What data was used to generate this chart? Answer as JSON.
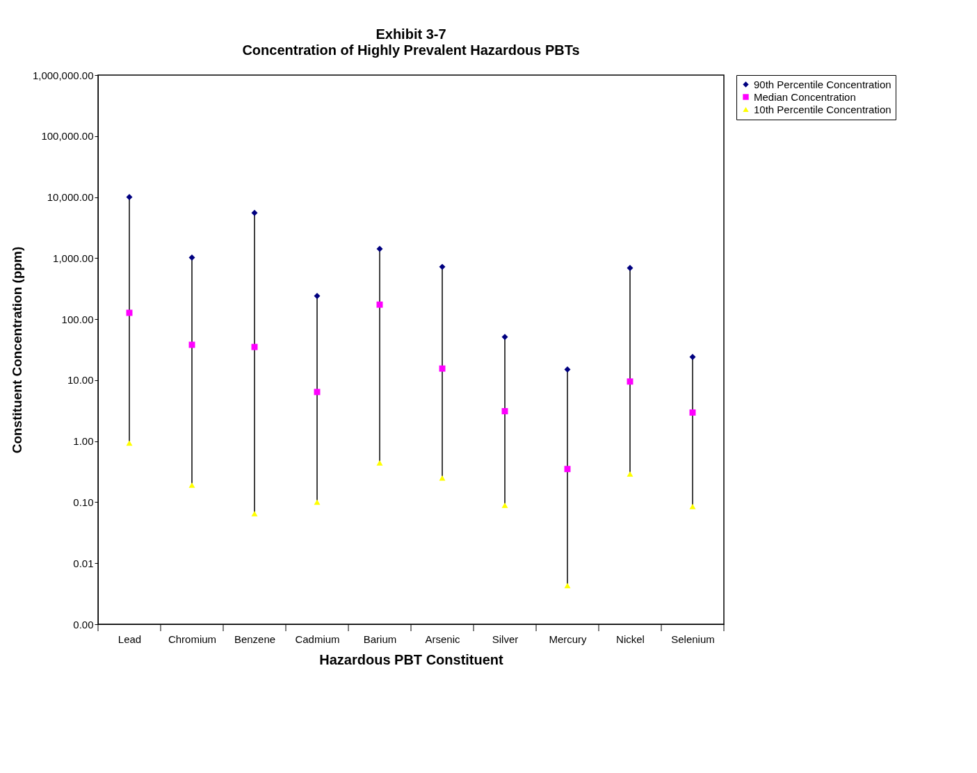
{
  "chart_data": {
    "type": "scatter",
    "title": "Exhibit 3-7",
    "subtitle": "Concentration of Highly Prevalent Hazardous PBTs",
    "xlabel": "Hazardous PBT Constituent",
    "ylabel": "Constituent Concentration (ppm)",
    "categories": [
      "Lead",
      "Chromium",
      "Benzene",
      "Cadmium",
      "Barium",
      "Arsenic",
      "Silver",
      "Mercury",
      "Nickel",
      "Selenium"
    ],
    "series": [
      {
        "name": "90th Percentile Concentration",
        "color": "#000080",
        "marker": "diamond",
        "values": [
          10000,
          1020,
          5500,
          240,
          1420,
          720,
          51,
          15,
          690,
          24
        ]
      },
      {
        "name": "Median Concentration",
        "color": "#ff00ff",
        "marker": "square",
        "values": [
          127,
          38,
          35,
          6.4,
          173,
          15.5,
          3.1,
          0.35,
          9.5,
          2.95
        ]
      },
      {
        "name": "10th Percentile Concentration",
        "color": "#ffff00",
        "marker": "triangle",
        "values": [
          0.93,
          0.19,
          0.065,
          0.1,
          0.44,
          0.25,
          0.089,
          0.0043,
          0.29,
          0.085
        ]
      }
    ],
    "log": true,
    "ylim": [
      0.001,
      1000000
    ],
    "yticks": [
      {
        "value": 0.001,
        "label": "0.00"
      },
      {
        "value": 0.01,
        "label": "0.01"
      },
      {
        "value": 0.1,
        "label": "0.10"
      },
      {
        "value": 1,
        "label": "1.00"
      },
      {
        "value": 10,
        "label": "10.00"
      },
      {
        "value": 100,
        "label": "100.00"
      },
      {
        "value": 1000,
        "label": "1,000.00"
      },
      {
        "value": 10000,
        "label": "10,000.00"
      },
      {
        "value": 100000,
        "label": "100,000.00"
      },
      {
        "value": 1000000,
        "label": "1,000,000.00"
      }
    ],
    "grid": false,
    "legend": "right"
  }
}
